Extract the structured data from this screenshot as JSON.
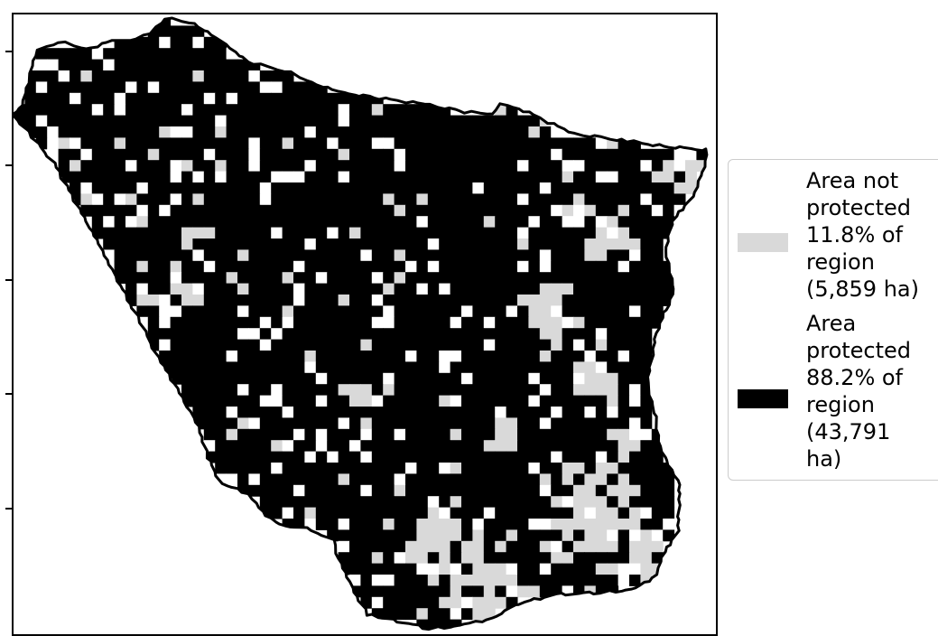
{
  "colors": {
    "not_protected": "#d9d9d9",
    "protected": "#000000",
    "unmapped": "#ffffff",
    "boundary": "#000000"
  },
  "legend": {
    "not_protected": "Area not\nprotected\n11.8% of\nregion\n(5,859 ha)",
    "protected": "Area\nprotected\n88.2% of\nregion\n(43,791\nha)"
  }
}
